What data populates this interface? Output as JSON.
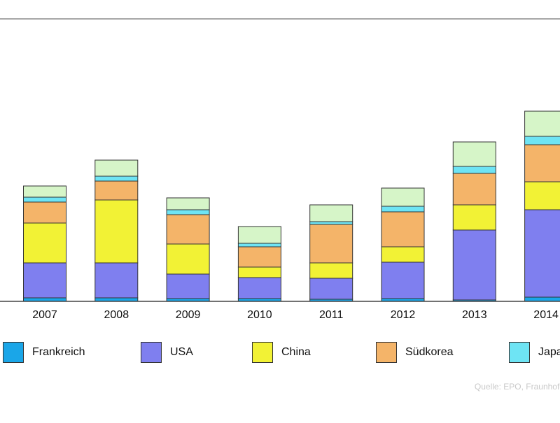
{
  "chart_data": {
    "type": "bar",
    "stacked": true,
    "categories": [
      "2007",
      "2008",
      "2009",
      "2010",
      "2011",
      "2012",
      "2013",
      "2014"
    ],
    "ylim": [
      0,
      370
    ],
    "series": [
      {
        "name": "Frankreich",
        "color": "#1aa6e8",
        "values": [
          5,
          5,
          4,
          4,
          3,
          4,
          2,
          6
        ]
      },
      {
        "name": "USA",
        "color": "#7f7fef",
        "values": [
          50,
          50,
          35,
          30,
          30,
          52,
          100,
          125
        ]
      },
      {
        "name": "China",
        "color": "#f2f235",
        "values": [
          57,
          90,
          43,
          15,
          22,
          22,
          36,
          40
        ]
      },
      {
        "name": "Südkorea",
        "color": "#f4b469",
        "values": [
          30,
          27,
          42,
          29,
          55,
          50,
          45,
          53
        ]
      },
      {
        "name": "Japan",
        "color": "#6ee4f4",
        "values": [
          7,
          7,
          7,
          5,
          4,
          8,
          10,
          12
        ]
      },
      {
        "name": "",
        "color": "#d6f5c8",
        "values": [
          16,
          23,
          17,
          24,
          24,
          26,
          35,
          36
        ]
      }
    ]
  },
  "legend": {
    "items": [
      {
        "label": "Frankreich",
        "color": "#1aa6e8"
      },
      {
        "label": "USA",
        "color": "#7f7fef"
      },
      {
        "label": "China",
        "color": "#f2f235"
      },
      {
        "label": "Südkorea",
        "color": "#f4b469"
      },
      {
        "label": "Japa",
        "color": "#6ee4f4"
      }
    ]
  },
  "source": "Quelle: EPO, Fraunhofer"
}
